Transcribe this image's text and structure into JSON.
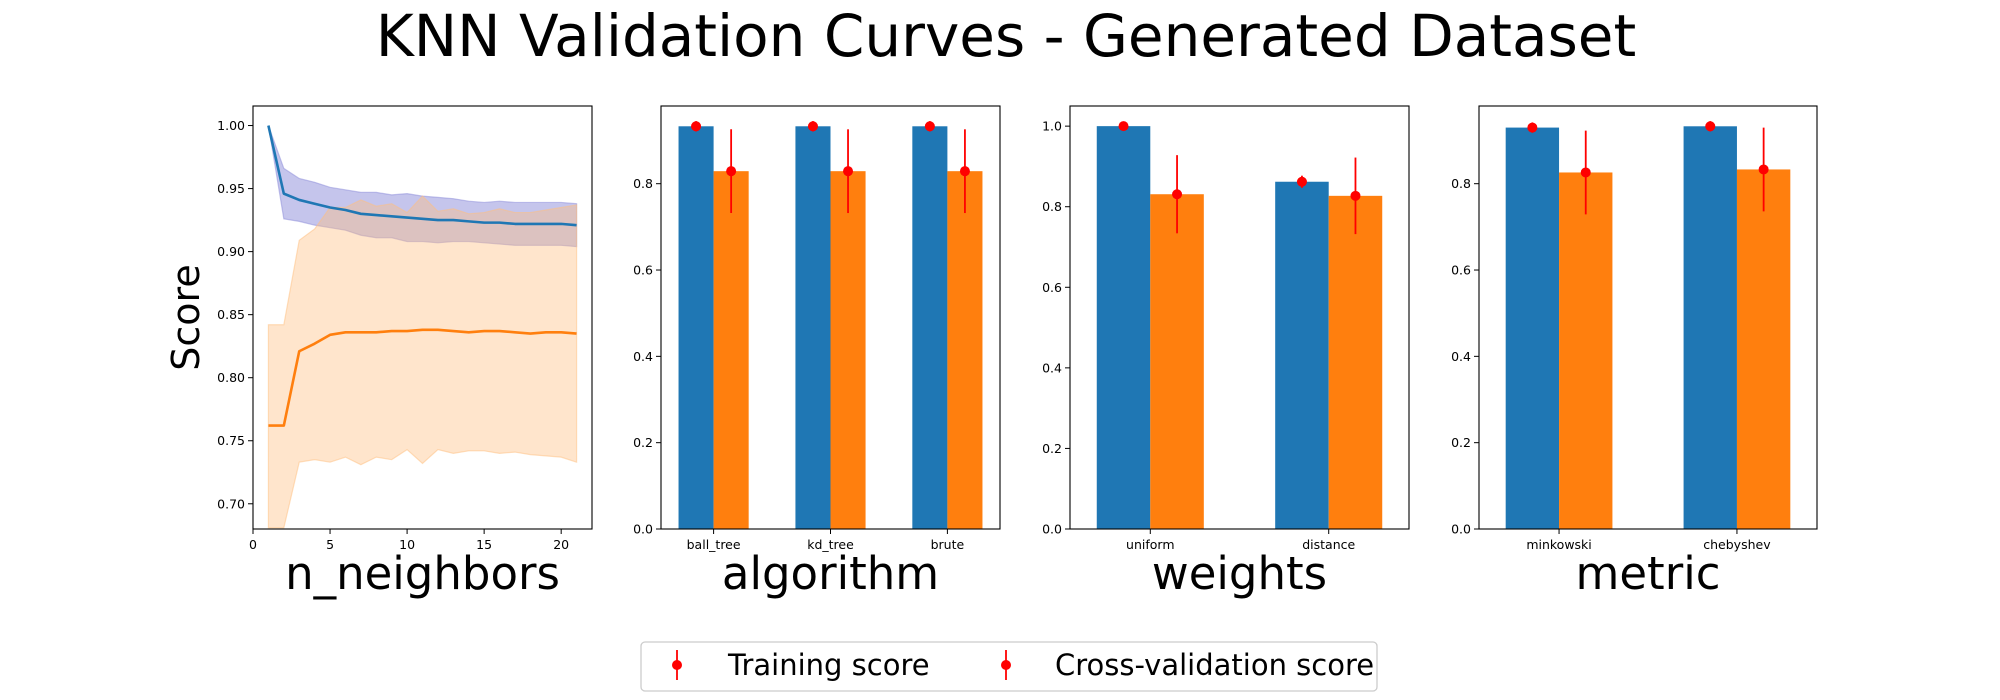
{
  "title": "KNN Validation Curves - Generated Dataset",
  "legend": {
    "placement": "bottom-center",
    "items": [
      "Training score",
      "Cross-validation score"
    ],
    "marker_color": "#ff0000"
  },
  "colors": {
    "train": "#1f77b4",
    "cv": "#ff7f0e",
    "train_band": "#8c8cd9",
    "cv_band": "#ffbf80",
    "error": "#ff0000"
  },
  "chart_data": [
    {
      "type": "line",
      "xlabel": "n_neighbors",
      "ylabel": "Score",
      "xlim": [
        0,
        22
      ],
      "ylim": [
        0.68,
        1.0155
      ],
      "xticks": [
        0,
        5,
        10,
        15,
        20
      ],
      "xtick_labels": [
        "0",
        "5",
        "10",
        "15",
        "20"
      ],
      "yticks": [
        0.7,
        0.75,
        0.8,
        0.85,
        0.9,
        0.95,
        1.0
      ],
      "ytick_labels": [
        "0.70",
        "0.75",
        "0.80",
        "0.85",
        "0.90",
        "0.95",
        "1.00"
      ],
      "x": [
        1,
        2,
        3,
        4,
        5,
        6,
        7,
        8,
        9,
        10,
        11,
        12,
        13,
        14,
        15,
        16,
        17,
        18,
        19,
        20,
        21
      ],
      "series": [
        {
          "name": "Training score",
          "values": [
            1.0,
            0.946,
            0.941,
            0.938,
            0.935,
            0.933,
            0.93,
            0.929,
            0.928,
            0.927,
            0.926,
            0.925,
            0.925,
            0.924,
            0.923,
            0.923,
            0.922,
            0.922,
            0.922,
            0.922,
            0.921
          ],
          "upper": [
            1.0,
            0.966,
            0.958,
            0.955,
            0.951,
            0.949,
            0.947,
            0.947,
            0.945,
            0.946,
            0.944,
            0.943,
            0.942,
            0.94,
            0.939,
            0.94,
            0.939,
            0.939,
            0.939,
            0.939,
            0.938
          ],
          "lower": [
            1.0,
            0.926,
            0.924,
            0.921,
            0.919,
            0.917,
            0.913,
            0.911,
            0.911,
            0.908,
            0.908,
            0.907,
            0.908,
            0.908,
            0.907,
            0.906,
            0.905,
            0.905,
            0.905,
            0.905,
            0.904
          ]
        },
        {
          "name": "Cross-validation score",
          "values": [
            0.762,
            0.762,
            0.821,
            0.827,
            0.834,
            0.836,
            0.836,
            0.836,
            0.837,
            0.837,
            0.838,
            0.838,
            0.837,
            0.836,
            0.837,
            0.837,
            0.836,
            0.835,
            0.836,
            0.836,
            0.835
          ],
          "upper": [
            0.842,
            0.842,
            0.909,
            0.918,
            0.935,
            0.935,
            0.941,
            0.936,
            0.938,
            0.931,
            0.944,
            0.932,
            0.934,
            0.93,
            0.931,
            0.934,
            0.931,
            0.931,
            0.933,
            0.935,
            0.937
          ],
          "lower": [
            0.681,
            0.681,
            0.733,
            0.735,
            0.733,
            0.737,
            0.731,
            0.737,
            0.735,
            0.743,
            0.732,
            0.743,
            0.74,
            0.742,
            0.742,
            0.74,
            0.741,
            0.739,
            0.738,
            0.737,
            0.733
          ]
        }
      ]
    },
    {
      "type": "bar",
      "xlabel": "algorithm",
      "categories": [
        "ball_tree",
        "kd_tree",
        "brute"
      ],
      "ylim": [
        0,
        0.98
      ],
      "yticks": [
        0.0,
        0.2,
        0.4,
        0.6,
        0.8
      ],
      "ytick_labels": [
        "0.0",
        "0.2",
        "0.4",
        "0.6",
        "0.8"
      ],
      "series": [
        {
          "name": "Training score",
          "values": [
            0.933,
            0.933,
            0.933
          ],
          "errors": [
            0.012,
            0.012,
            0.012
          ]
        },
        {
          "name": "Cross-validation score",
          "values": [
            0.829,
            0.829,
            0.829
          ],
          "errors": [
            0.097,
            0.097,
            0.097
          ]
        }
      ]
    },
    {
      "type": "bar",
      "xlabel": "weights",
      "categories": [
        "uniform",
        "distance"
      ],
      "ylim": [
        0,
        1.05
      ],
      "yticks": [
        0.0,
        0.2,
        0.4,
        0.6,
        0.8,
        1.0
      ],
      "ytick_labels": [
        "0.0",
        "0.2",
        "0.4",
        "0.6",
        "0.8",
        "1.0"
      ],
      "series": [
        {
          "name": "Training score",
          "values": [
            1.0,
            0.862
          ],
          "errors": [
            0.0,
            0.015
          ]
        },
        {
          "name": "Cross-validation score",
          "values": [
            0.831,
            0.827
          ],
          "errors": [
            0.097,
            0.095
          ]
        }
      ]
    },
    {
      "type": "bar",
      "xlabel": "metric",
      "categories": [
        "minkowski",
        "chebyshev"
      ],
      "ylim": [
        0,
        0.98
      ],
      "yticks": [
        0.0,
        0.2,
        0.4,
        0.6,
        0.8
      ],
      "ytick_labels": [
        "0.0",
        "0.2",
        "0.4",
        "0.6",
        "0.8"
      ],
      "series": [
        {
          "name": "Training score",
          "values": [
            0.93,
            0.933
          ],
          "errors": [
            0.012,
            0.012
          ]
        },
        {
          "name": "Cross-validation score",
          "values": [
            0.826,
            0.833
          ],
          "errors": [
            0.097,
            0.097
          ]
        }
      ]
    }
  ]
}
